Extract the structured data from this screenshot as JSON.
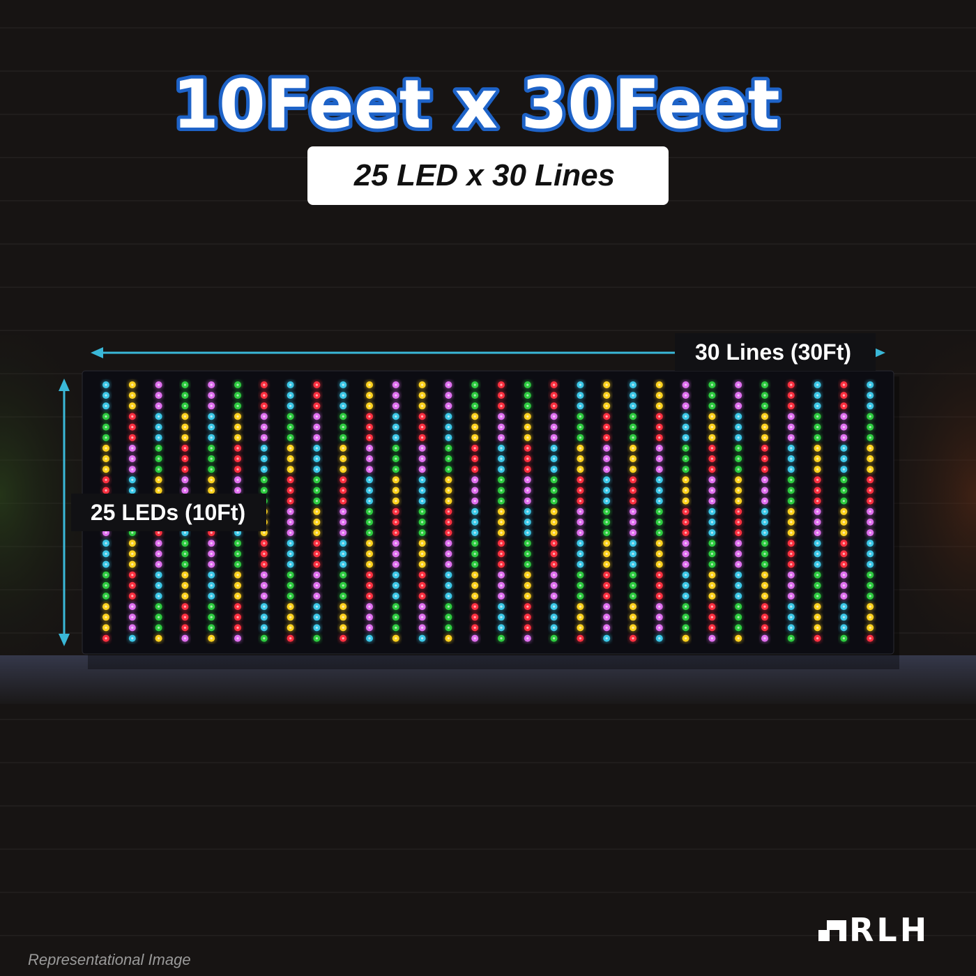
{
  "header": {
    "title": "10Feet x 30Feet",
    "subtitle": "25 LED x 30 Lines"
  },
  "dimensions": {
    "width_label": "30 Lines (30Ft)",
    "height_label": "25 LEDs (10Ft)"
  },
  "brand": {
    "logo": "RLH"
  },
  "footer": {
    "note": "Representational Image"
  }
}
